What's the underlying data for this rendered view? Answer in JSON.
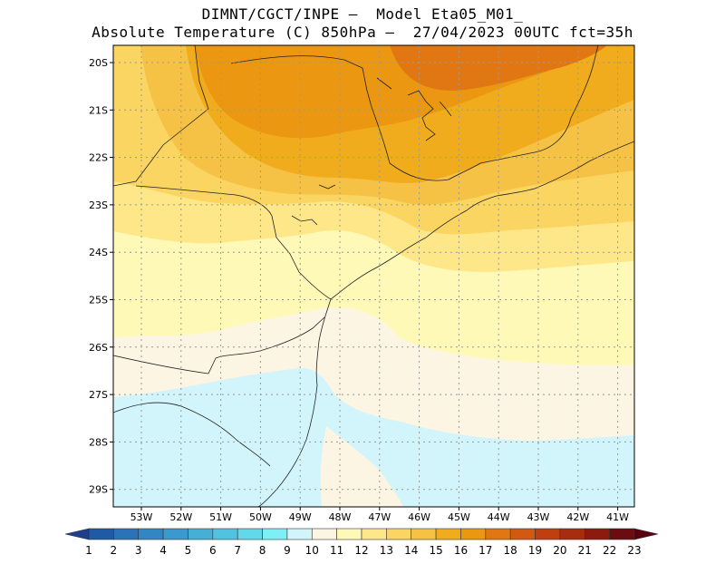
{
  "title": {
    "line1": "DIMNT/CGCT/INPE —  Model Eta05_M01_",
    "line2": "Absolute Temperature (C) 850hPa —  27/04/2023 00UTC fct=35h"
  },
  "lat_labels": [
    "20S",
    "21S",
    "22S",
    "23S",
    "24S",
    "25S",
    "26S",
    "27S",
    "28S",
    "29S"
  ],
  "lon_labels": [
    "53W",
    "52W",
    "51W",
    "50W",
    "49W",
    "48W",
    "47W",
    "46W",
    "45W",
    "44W",
    "43W",
    "42W",
    "41W"
  ],
  "colorbar": {
    "labels": [
      "1",
      "2",
      "3",
      "4",
      "5",
      "6",
      "7",
      "8",
      "9",
      "10",
      "11",
      "12",
      "13",
      "14",
      "15",
      "16",
      "17",
      "18",
      "19",
      "20",
      "21",
      "22",
      "23"
    ],
    "colors": [
      "#1c3f8f",
      "#1f5aa6",
      "#2b73b8",
      "#3287c3",
      "#3a9acd",
      "#45afd6",
      "#52c3de",
      "#63d8e8",
      "#7cf0f5",
      "#d2f4fb",
      "#fdf5e3",
      "#fff9b8",
      "#fde789",
      "#fad561",
      "#f5c246",
      "#f1ac1d",
      "#eb9711",
      "#e07712",
      "#d25a10",
      "#bf3f0f",
      "#a82c0e",
      "#8c1a0f",
      "#6b0d10",
      "#560010"
    ]
  },
  "map": {
    "colors": {
      "t11": "#fdf5e3",
      "t12": "#fff9b8",
      "t13": "#fde789",
      "t14": "#fad561",
      "t15": "#f5c246",
      "t16": "#f1ac1d",
      "t17": "#eb9711",
      "t18": "#e07712",
      "t10": "#d2f4fb",
      "t9": "#a6ecf7"
    }
  }
}
